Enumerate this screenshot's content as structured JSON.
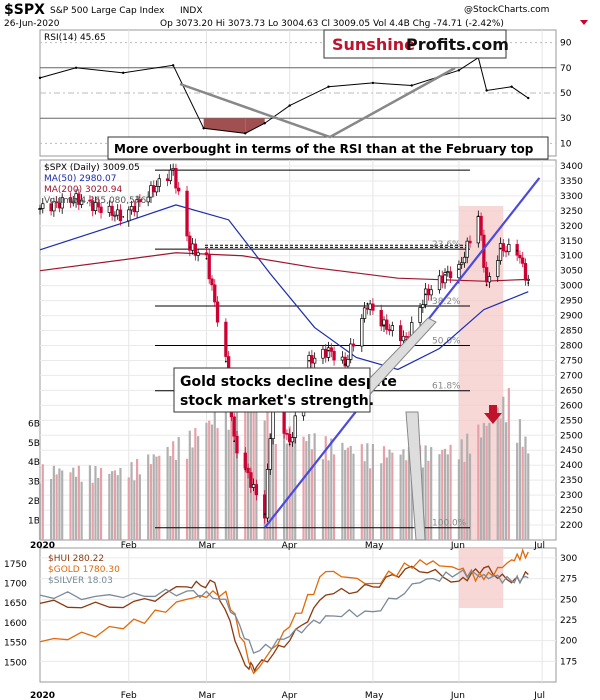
{
  "header": {
    "symbol": "$SPX",
    "index_name": "S&P 500 Large Cap Index",
    "exchange": "INDX",
    "date": "26-Jun-2020",
    "ohlc": "Op 3073.20  Hi 3073.73  Lo 3004.63  Cl 3009.05  Vol 4.4B  Chg -74.71 (-2.42%)",
    "watermark": "@StockCharts.com",
    "logo_part1": "Sunshine",
    "logo_part2": "Profits.com"
  },
  "colors": {
    "bull": "#000000",
    "bear": "#cc0033",
    "ma50": "#1a2bb0",
    "ma200": "#a0142e",
    "volume": "#b0b0b0",
    "volume_red": "#e8a0a8",
    "highlight": "#f5c9c9",
    "trendline": "#4a4ae0",
    "gold": "#e06a0a",
    "hui": "#8a3a10",
    "silver": "#7a8a9a"
  },
  "annotations": {
    "rsi_note": "More overbought in terms of the RSI than at the February top",
    "gold_note_line1": "Gold stocks decline despite",
    "gold_note_line2": "stock market's strength."
  },
  "chart_data": [
    {
      "type": "line",
      "panel": "rsi",
      "label": "RSI(14) 45.65",
      "ylim": [
        0,
        100
      ],
      "yticks": [
        10,
        30,
        50,
        70,
        90
      ],
      "x": [
        "2020-01-02",
        "2020-01-15",
        "2020-02-01",
        "2020-02-19",
        "2020-03-01",
        "2020-03-16",
        "2020-03-23",
        "2020-04-01",
        "2020-04-15",
        "2020-05-01",
        "2020-05-15",
        "2020-06-01",
        "2020-06-08",
        "2020-06-11",
        "2020-06-20",
        "2020-06-26"
      ],
      "values": [
        62,
        70,
        66,
        72,
        22,
        18,
        26,
        40,
        55,
        58,
        56,
        68,
        78,
        52,
        55,
        46
      ]
    },
    {
      "type": "line",
      "panel": "price",
      "label": "$SPX (Daily) 3009.05",
      "ylim": [
        2150,
        3420
      ],
      "yticks": [
        2200,
        2250,
        2300,
        2350,
        2400,
        2450,
        2500,
        2550,
        2600,
        2650,
        2700,
        2750,
        2800,
        2850,
        2900,
        2950,
        3000,
        3050,
        3100,
        3150,
        3200,
        3250,
        3300,
        3350,
        3400
      ],
      "series": [
        {
          "name": "$SPX (Daily) 3009.05",
          "x": [
            "2020-01-02",
            "2020-01-15",
            "2020-02-01",
            "2020-02-19",
            "2020-02-25",
            "2020-03-02",
            "2020-03-09",
            "2020-03-12",
            "2020-03-16",
            "2020-03-23",
            "2020-03-26",
            "2020-04-01",
            "2020-04-08",
            "2020-04-15",
            "2020-04-21",
            "2020-04-29",
            "2020-05-05",
            "2020-05-13",
            "2020-05-20",
            "2020-05-27",
            "2020-06-01",
            "2020-06-08",
            "2020-06-11",
            "2020-06-16",
            "2020-06-22",
            "2020-06-26"
          ],
          "values": [
            3258,
            3290,
            3230,
            3386,
            3128,
            3090,
            2746,
            2480,
            2386,
            2237,
            2630,
            2470,
            2749,
            2783,
            2737,
            2939,
            2868,
            2820,
            2971,
            3036,
            3055,
            3232,
            3002,
            3124,
            3117,
            3009
          ]
        },
        {
          "name": "MA(50) 2980.07",
          "x": [
            "2020-01-02",
            "2020-02-01",
            "2020-02-20",
            "2020-03-10",
            "2020-03-25",
            "2020-04-10",
            "2020-04-25",
            "2020-05-10",
            "2020-05-25",
            "2020-06-10",
            "2020-06-26"
          ],
          "values": [
            3120,
            3210,
            3270,
            3220,
            3040,
            2860,
            2760,
            2720,
            2790,
            2920,
            2980
          ]
        },
        {
          "name": "MA(200) 3020.94",
          "x": [
            "2020-01-02",
            "2020-02-20",
            "2020-03-15",
            "2020-04-10",
            "2020-05-10",
            "2020-06-10",
            "2020-06-26"
          ],
          "values": [
            3050,
            3110,
            3100,
            3060,
            3025,
            3015,
            3021
          ]
        }
      ],
      "volume_label": "Volume 4,365,080,576",
      "volume_ticks": [
        "1B",
        "2B",
        "3B",
        "4B",
        "5B",
        "6B"
      ],
      "volume_x": [
        "2020-01-02",
        "2020-02-01",
        "2020-02-24",
        "2020-03-09",
        "2020-03-16",
        "2020-03-23",
        "2020-04-01",
        "2020-04-15",
        "2020-05-01",
        "2020-05-15",
        "2020-06-01",
        "2020-06-11",
        "2020-06-19",
        "2020-06-26"
      ],
      "volume_values": [
        3.4,
        3.3,
        4.8,
        6.4,
        7.0,
        6.2,
        5.2,
        4.6,
        4.3,
        4.2,
        4.4,
        5.6,
        6.8,
        4.4
      ],
      "fib_levels": [
        {
          "label": "23.6%",
          "value": 3122
        },
        {
          "label": "38.2%",
          "value": 2932
        },
        {
          "label": "50.0%",
          "value": 2800
        },
        {
          "label": "61.8%",
          "value": 2649
        },
        {
          "label": "100.0%",
          "value": 2191
        }
      ],
      "fib_top_value": 3386,
      "highlight_range": [
        "2020-06-01",
        "2020-06-17"
      ],
      "trendline": {
        "x": [
          "2020-03-23",
          "2020-06-30"
        ],
        "values": [
          2191,
          3360
        ]
      }
    },
    {
      "type": "line",
      "panel": "metals",
      "left_ylim": [
        1450,
        1790
      ],
      "left_yticks": [
        1500,
        1550,
        1600,
        1650,
        1700,
        1750
      ],
      "right_ylim": [
        150,
        312
      ],
      "right_yticks": [
        175,
        200,
        225,
        250,
        275,
        300
      ],
      "series": [
        {
          "name": "$HUI 280.22",
          "axis": "right",
          "x": [
            "2020-01-02",
            "2020-02-01",
            "2020-02-24",
            "2020-03-05",
            "2020-03-16",
            "2020-03-20",
            "2020-04-01",
            "2020-04-14",
            "2020-05-01",
            "2020-05-15",
            "2020-06-01",
            "2020-06-10",
            "2020-06-20",
            "2020-06-26"
          ],
          "values": [
            245,
            240,
            265,
            270,
            170,
            168,
            200,
            255,
            265,
            290,
            272,
            288,
            270,
            280
          ]
        },
        {
          "name": "$GOLD 1780.30",
          "axis": "left",
          "x": [
            "2020-01-02",
            "2020-02-01",
            "2020-02-24",
            "2020-03-09",
            "2020-03-19",
            "2020-04-01",
            "2020-04-14",
            "2020-05-01",
            "2020-05-18",
            "2020-06-01",
            "2020-06-10",
            "2020-06-20",
            "2020-06-26"
          ],
          "values": [
            1552,
            1585,
            1660,
            1680,
            1472,
            1590,
            1730,
            1700,
            1760,
            1735,
            1710,
            1760,
            1780
          ]
        },
        {
          "name": "$SILVER 18.03",
          "axis": "right",
          "x": [
            "2020-01-02",
            "2020-02-01",
            "2020-02-24",
            "2020-03-09",
            "2020-03-19",
            "2020-04-01",
            "2020-04-14",
            "2020-05-01",
            "2020-05-18",
            "2020-06-01",
            "2020-06-10",
            "2020-06-20",
            "2020-06-26"
          ],
          "values": [
            255,
            252,
            260,
            250,
            185,
            205,
            230,
            235,
            270,
            282,
            280,
            272,
            276
          ]
        }
      ]
    }
  ],
  "x_axis": {
    "labels": [
      {
        "label": "2020",
        "date": "2020-01-02",
        "bold": true
      },
      {
        "label": "Feb",
        "date": "2020-02-03",
        "bold": false
      },
      {
        "label": "Mar",
        "date": "2020-03-02",
        "bold": false
      },
      {
        "label": "Apr",
        "date": "2020-04-01",
        "bold": false
      },
      {
        "label": "May",
        "date": "2020-05-01",
        "bold": false
      },
      {
        "label": "Jun",
        "date": "2020-06-01",
        "bold": false
      },
      {
        "label": "Jul",
        "date": "2020-07-01",
        "bold": false
      }
    ]
  }
}
